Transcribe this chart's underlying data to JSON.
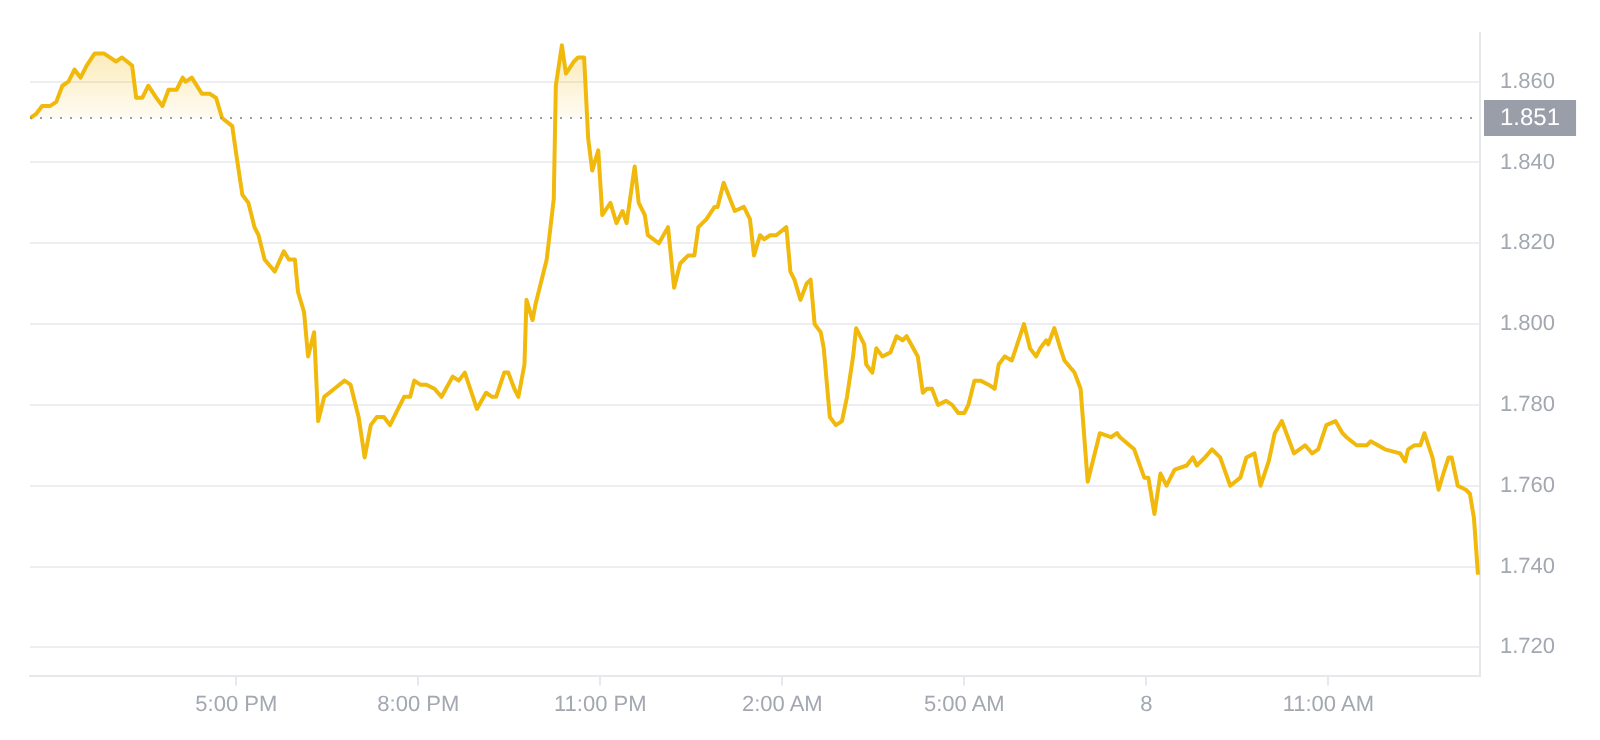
{
  "chart_data": {
    "type": "line",
    "xlim": [
      "--01-07T13:36",
      "--01-08T13:30"
    ],
    "ylim": [
      1.713,
      1.872
    ],
    "xticks": [
      {
        "value": "--01-07T17:00",
        "label": "5:00 PM"
      },
      {
        "value": "--01-07T20:00",
        "label": "8:00 PM"
      },
      {
        "value": "--01-07T23:00",
        "label": "11:00 PM"
      },
      {
        "value": "--01-08T02:00",
        "label": "2:00 AM"
      },
      {
        "value": "--01-08T05:00",
        "label": "5:00 AM"
      },
      {
        "value": "--01-08T08:00",
        "label": "8"
      },
      {
        "value": "--01-08T11:00",
        "label": "11:00 AM"
      }
    ],
    "yticks": [
      {
        "value": 1.72,
        "label": "1.720"
      },
      {
        "value": 1.74,
        "label": "1.740"
      },
      {
        "value": 1.76,
        "label": "1.760"
      },
      {
        "value": 1.78,
        "label": "1.780"
      },
      {
        "value": 1.8,
        "label": "1.800"
      },
      {
        "value": 1.82,
        "label": "1.820"
      },
      {
        "value": 1.84,
        "label": "1.840"
      },
      {
        "value": 1.86,
        "label": "1.860"
      }
    ],
    "grid": "y",
    "legend": false,
    "marker": "none",
    "ref_lines": [
      {
        "axis": "y",
        "value": 1.851,
        "label": "1.851",
        "color": "#9a9ea8",
        "line_style": "dotted"
      }
    ],
    "series": [
      {
        "color": "#f0b90b",
        "x": [
          "--01-07T13:36",
          "--01-07T13:42",
          "--01-07T13:48",
          "--01-07T13:56",
          "--01-07T14:02",
          "--01-07T14:08",
          "--01-07T14:14",
          "--01-07T14:20",
          "--01-07T14:26",
          "--01-07T14:32",
          "--01-07T14:40",
          "--01-07T14:49",
          "--01-07T14:55",
          "--01-07T15:01",
          "--01-07T15:07",
          "--01-07T15:17",
          "--01-07T15:21",
          "--01-07T15:27",
          "--01-07T15:33",
          "--01-07T15:41",
          "--01-07T15:47",
          "--01-07T15:53",
          "--01-07T16:01",
          "--01-07T16:07",
          "--01-07T16:10",
          "--01-07T16:16",
          "--01-07T16:26",
          "--01-07T16:34",
          "--01-07T16:40",
          "--01-07T16:46",
          "--01-07T16:56",
          "--01-07T17:00",
          "--01-07T17:06",
          "--01-07T17:12",
          "--01-07T17:18",
          "--01-07T17:22",
          "--01-07T17:28",
          "--01-07T17:38",
          "--01-07T17:47",
          "--01-07T17:52",
          "--01-07T17:58",
          "--01-07T18:01",
          "--01-07T18:07",
          "--01-07T18:11",
          "--01-07T18:17",
          "--01-07T18:21",
          "--01-07T18:27",
          "--01-07T18:37",
          "--01-07T18:47",
          "--01-07T18:53",
          "--01-07T19:01",
          "--01-07T19:07",
          "--01-07T19:13",
          "--01-07T19:19",
          "--01-07T19:26",
          "--01-07T19:32",
          "--01-07T19:40",
          "--01-07T19:46",
          "--01-07T19:52",
          "--01-07T19:56",
          "--01-07T20:02",
          "--01-07T20:08",
          "--01-07T20:16",
          "--01-07T20:23",
          "--01-07T20:34",
          "--01-07T20:40",
          "--01-07T20:46",
          "--01-07T20:58",
          "--01-07T21:07",
          "--01-07T21:13",
          "--01-07T21:17",
          "--01-07T21:25",
          "--01-07T21:29",
          "--01-07T21:35",
          "--01-07T21:39",
          "--01-07T21:45",
          "--01-07T21:47",
          "--01-07T21:53",
          "--01-07T21:56",
          "--01-07T22:07",
          "--01-07T22:14",
          "--01-07T22:16",
          "--01-07T22:22",
          "--01-07T22:26",
          "--01-07T22:34",
          "--01-07T22:38",
          "--01-07T22:44",
          "--01-07T22:48",
          "--01-07T22:52",
          "--01-07T22:58",
          "--01-07T23:02",
          "--01-07T23:10",
          "--01-07T23:16",
          "--01-07T23:22",
          "--01-07T23:26",
          "--01-07T23:34",
          "--01-07T23:38",
          "--01-07T23:44",
          "--01-07T23:47",
          "--01-07T23:58",
          "--01-08T00:07",
          "--01-08T00:13",
          "--01-08T00:19",
          "--01-08T00:27",
          "--01-08T00:33",
          "--01-08T00:37",
          "--01-08T00:45",
          "--01-08T00:53",
          "--01-08T00:56",
          "--01-08T01:02",
          "--01-08T01:13",
          "--01-08T01:22",
          "--01-08T01:28",
          "--01-08T01:32",
          "--01-08T01:38",
          "--01-08T01:42",
          "--01-08T01:48",
          "--01-08T01:54",
          "--01-08T02:04",
          "--01-08T02:08",
          "--01-08T02:12",
          "--01-08T02:18",
          "--01-08T02:24",
          "--01-08T02:28",
          "--01-08T02:32",
          "--01-08T02:38",
          "--01-08T02:41",
          "--01-08T02:47",
          "--01-08T02:53",
          "--01-08T02:59",
          "--01-08T03:04",
          "--01-08T03:10",
          "--01-08T03:13",
          "--01-08T03:21",
          "--01-08T03:23",
          "--01-08T03:29",
          "--01-08T03:33",
          "--01-08T03:39",
          "--01-08T03:47",
          "--01-08T03:53",
          "--01-08T03:59",
          "--01-08T04:03",
          "--01-08T04:14",
          "--01-08T04:19",
          "--01-08T04:23",
          "--01-08T04:28",
          "--01-08T04:34",
          "--01-08T04:42",
          "--01-08T04:48",
          "--01-08T04:54",
          "--01-08T05:00",
          "--01-08T05:04",
          "--01-08T05:10",
          "--01-08T05:16",
          "--01-08T05:24",
          "--01-08T05:30",
          "--01-08T05:34",
          "--01-08T05:40",
          "--01-08T05:47",
          "--01-08T05:59",
          "--01-08T06:05",
          "--01-08T06:11",
          "--01-08T06:15",
          "--01-08T06:21",
          "--01-08T06:23",
          "--01-08T06:29",
          "--01-08T06:35",
          "--01-08T06:39",
          "--01-08T06:49",
          "--01-08T06:55",
          "--01-08T07:02",
          "--01-08T07:14",
          "--01-08T07:25",
          "--01-08T07:31",
          "--01-08T07:34",
          "--01-08T07:48",
          "--01-08T07:58",
          "--01-08T08:02",
          "--01-08T08:08",
          "--01-08T08:14",
          "--01-08T08:20",
          "--01-08T08:28",
          "--01-08T08:40",
          "--01-08T08:46",
          "--01-08T08:50",
          "--01-08T08:58",
          "--01-08T09:05",
          "--01-08T09:13",
          "--01-08T09:23",
          "--01-08T09:33",
          "--01-08T09:39",
          "--01-08T09:47",
          "--01-08T09:53",
          "--01-08T10:01",
          "--01-08T10:07",
          "--01-08T10:14",
          "--01-08T10:26",
          "--01-08T10:37",
          "--01-08T10:44",
          "--01-08T10:50",
          "--01-08T10:58",
          "--01-08T11:07",
          "--01-08T11:14",
          "--01-08T11:18",
          "--01-08T11:28",
          "--01-08T11:38",
          "--01-08T11:42",
          "--01-08T11:56",
          "--01-08T12:11",
          "--01-08T12:16",
          "--01-08T12:19",
          "--01-08T12:25",
          "--01-08T12:31",
          "--01-08T12:35",
          "--01-08T12:43",
          "--01-08T12:49",
          "--01-08T12:55",
          "--01-08T12:59",
          "--01-08T13:02",
          "--01-08T13:08",
          "--01-08T13:16",
          "--01-08T13:20",
          "--01-08T13:24",
          "--01-08T13:28"
        ],
        "values": [
          1.851,
          1.852,
          1.854,
          1.854,
          1.855,
          1.859,
          1.86,
          1.863,
          1.861,
          1.864,
          1.867,
          1.867,
          1.866,
          1.865,
          1.866,
          1.864,
          1.856,
          1.856,
          1.859,
          1.856,
          1.854,
          1.858,
          1.858,
          1.861,
          1.86,
          1.861,
          1.857,
          1.857,
          1.856,
          1.851,
          1.849,
          1.842,
          1.832,
          1.83,
          1.824,
          1.822,
          1.816,
          1.813,
          1.818,
          1.816,
          1.816,
          1.808,
          1.803,
          1.792,
          1.798,
          1.776,
          1.782,
          1.784,
          1.786,
          1.785,
          1.777,
          1.767,
          1.775,
          1.777,
          1.777,
          1.775,
          1.779,
          1.782,
          1.782,
          1.786,
          1.785,
          1.785,
          1.784,
          1.782,
          1.787,
          1.786,
          1.788,
          1.779,
          1.783,
          1.782,
          1.782,
          1.788,
          1.788,
          1.784,
          1.782,
          1.79,
          1.806,
          1.801,
          1.805,
          1.816,
          1.831,
          1.859,
          1.869,
          1.862,
          1.865,
          1.866,
          1.866,
          1.846,
          1.838,
          1.843,
          1.827,
          1.83,
          1.825,
          1.828,
          1.825,
          1.839,
          1.83,
          1.827,
          1.822,
          1.82,
          1.824,
          1.809,
          1.815,
          1.817,
          1.817,
          1.824,
          1.826,
          1.829,
          1.829,
          1.835,
          1.828,
          1.829,
          1.826,
          1.817,
          1.822,
          1.821,
          1.822,
          1.822,
          1.824,
          1.813,
          1.811,
          1.806,
          1.81,
          1.811,
          1.8,
          1.798,
          1.794,
          1.777,
          1.775,
          1.776,
          1.782,
          1.792,
          1.799,
          1.795,
          1.79,
          1.788,
          1.794,
          1.792,
          1.793,
          1.797,
          1.796,
          1.797,
          1.792,
          1.783,
          1.784,
          1.784,
          1.78,
          1.781,
          1.78,
          1.778,
          1.778,
          1.78,
          1.786,
          1.786,
          1.785,
          1.784,
          1.79,
          1.792,
          1.791,
          1.8,
          1.794,
          1.792,
          1.794,
          1.796,
          1.795,
          1.799,
          1.794,
          1.791,
          1.788,
          1.784,
          1.761,
          1.773,
          1.772,
          1.773,
          1.772,
          1.769,
          1.762,
          1.762,
          1.753,
          1.763,
          1.76,
          1.764,
          1.765,
          1.767,
          1.765,
          1.767,
          1.769,
          1.767,
          1.76,
          1.762,
          1.767,
          1.768,
          1.76,
          1.766,
          1.773,
          1.776,
          1.768,
          1.77,
          1.768,
          1.769,
          1.775,
          1.776,
          1.773,
          1.772,
          1.77,
          1.77,
          1.771,
          1.769,
          1.768,
          1.766,
          1.769,
          1.77,
          1.77,
          1.773,
          1.767,
          1.759,
          1.764,
          1.767,
          1.767,
          1.76,
          1.759,
          1.758,
          1.752,
          1.738
        ]
      }
    ]
  }
}
